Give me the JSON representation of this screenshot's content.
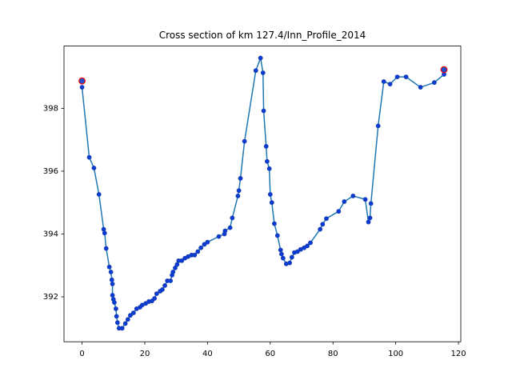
{
  "chart_data": {
    "type": "line",
    "title": "Cross section of km 127.4/Inn_Profile_2014",
    "xlim": [
      -5.75,
      120.75
    ],
    "ylim": [
      390.57,
      399.98
    ],
    "xticks": [
      0,
      20,
      40,
      60,
      80,
      100,
      120
    ],
    "yticks": [
      392,
      394,
      396,
      398
    ],
    "series": [
      {
        "color": "#1f77b4",
        "marker_color": "#0b3bd6",
        "x": [
          0,
          2.3,
          3.8,
          5.4,
          6.9,
          7.2,
          7.7,
          8.7,
          9.2,
          9.5,
          9.7,
          9.7,
          10.0,
          10.3,
          10.8,
          11.0,
          11.3,
          11.8,
          12.8,
          13.8,
          14.6,
          15.4,
          16.4,
          17.4,
          18.5,
          19.2,
          20.3,
          21.3,
          22.3,
          23.1,
          23.8,
          24.9,
          25.6,
          26.4,
          27.2,
          28.2,
          28.7,
          29.0,
          29.7,
          30.3,
          30.8,
          31.8,
          32.8,
          33.8,
          34.9,
          35.9,
          36.9,
          37.9,
          39.0,
          40.0,
          43.6,
          45.4,
          45.6,
          47.2,
          47.9,
          49.7,
          50.0,
          50.5,
          51.8,
          55.4,
          56.9,
          57.7,
          57.9,
          58.7,
          59.0,
          59.7,
          60.0,
          60.5,
          61.3,
          62.3,
          63.3,
          63.6,
          64.1,
          65.1,
          66.2,
          66.9,
          67.7,
          68.7,
          69.7,
          70.8,
          71.8,
          72.8,
          75.9,
          76.7,
          77.9,
          81.8,
          83.6,
          86.4,
          90.3,
          91.3,
          91.8,
          92.1,
          94.4,
          96.2,
          98.2,
          100.5,
          103.3,
          107.9,
          112.3,
          115.4
        ],
        "values": [
          398.67,
          396.44,
          396.1,
          395.26,
          394.15,
          394.03,
          393.54,
          392.95,
          392.79,
          392.54,
          392.41,
          392.05,
          391.92,
          391.82,
          391.62,
          391.38,
          391.18,
          391.0,
          391.0,
          391.15,
          391.28,
          391.41,
          391.49,
          391.62,
          391.67,
          391.74,
          391.79,
          391.85,
          391.87,
          391.95,
          392.1,
          392.18,
          392.23,
          392.36,
          392.51,
          392.51,
          392.69,
          392.79,
          392.92,
          393.03,
          393.15,
          393.15,
          393.23,
          393.28,
          393.33,
          393.33,
          393.44,
          393.56,
          393.67,
          393.74,
          393.92,
          394.0,
          394.1,
          394.2,
          394.51,
          395.21,
          395.38,
          395.77,
          396.95,
          399.2,
          399.6,
          399.13,
          397.92,
          396.79,
          396.31,
          396.08,
          395.26,
          395.0,
          394.33,
          393.95,
          393.49,
          393.36,
          393.23,
          393.05,
          393.08,
          393.26,
          393.41,
          393.44,
          393.51,
          393.56,
          393.62,
          393.72,
          394.15,
          394.31,
          394.49,
          394.72,
          395.03,
          395.21,
          395.1,
          394.38,
          394.51,
          394.97,
          397.44,
          398.85,
          398.77,
          399.0,
          399.0,
          398.67,
          398.82,
          399.08
        ]
      },
      {
        "color": "#ff0000",
        "x": [
          0,
          115.4
        ],
        "values": [
          398.87,
          399.23
        ]
      }
    ]
  }
}
